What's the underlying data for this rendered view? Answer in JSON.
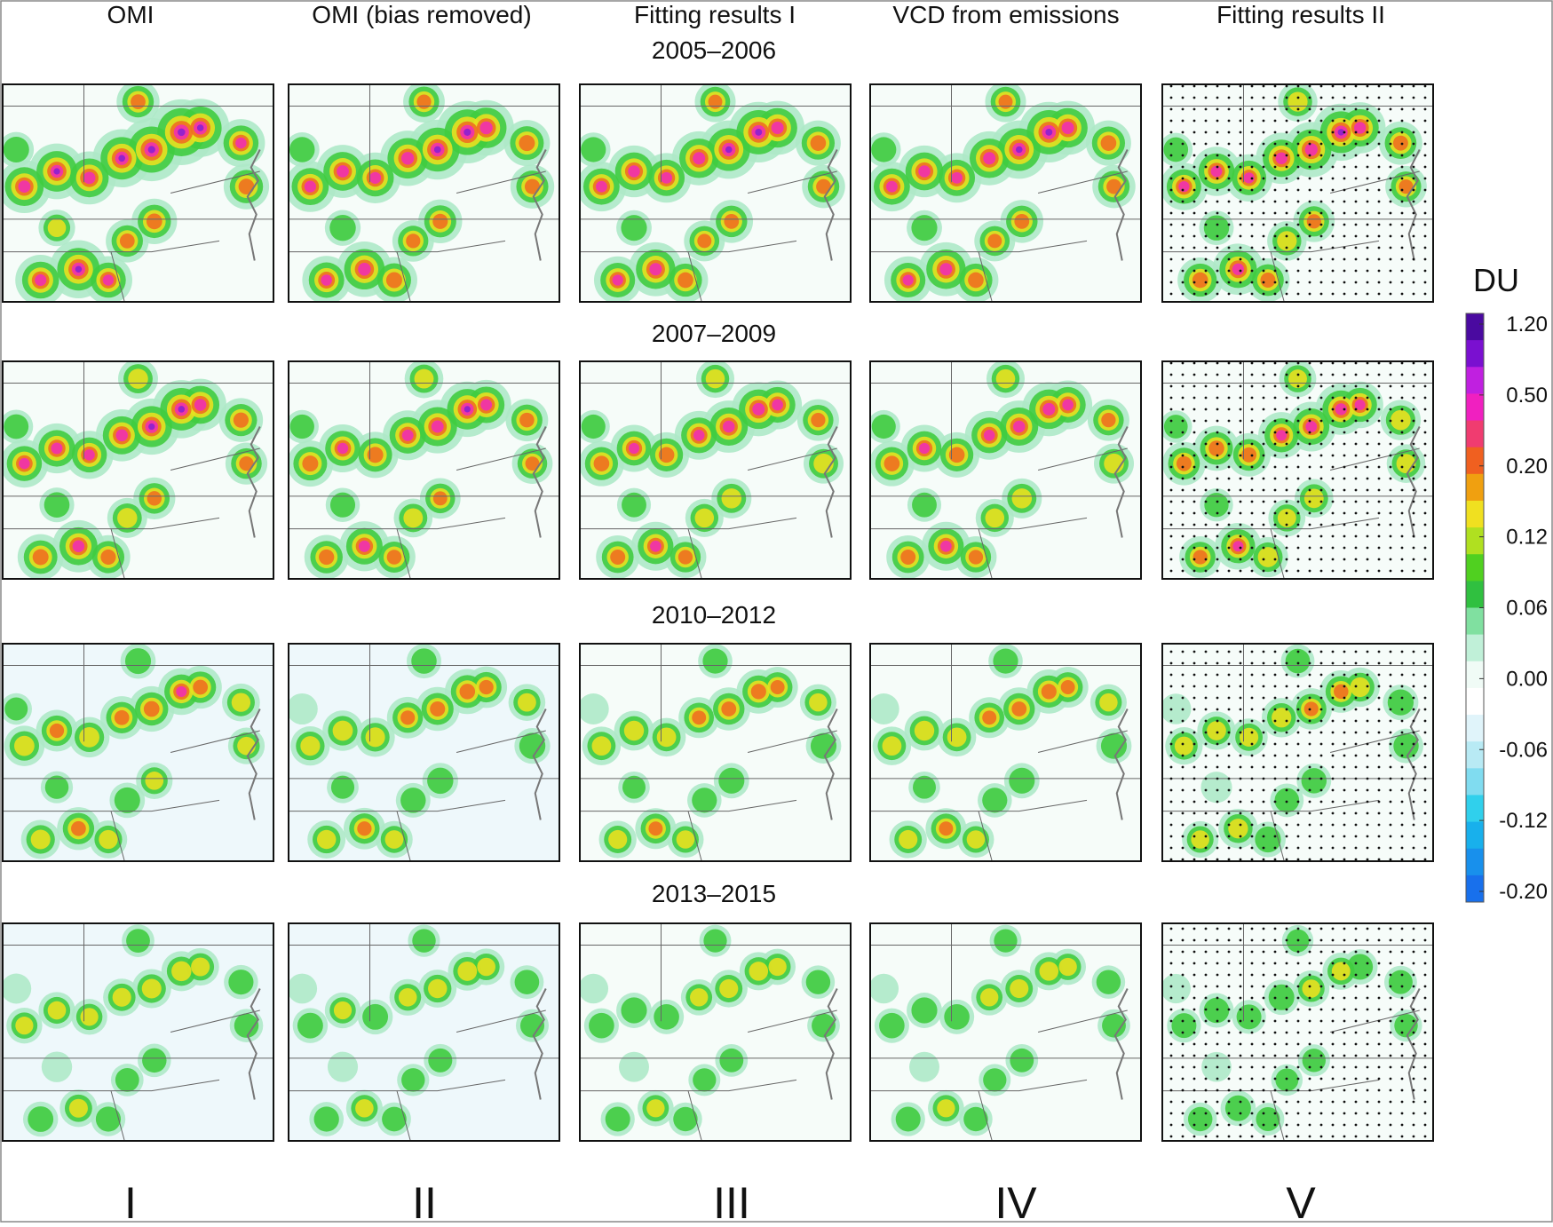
{
  "columns": [
    "OMI",
    "OMI (bias removed)",
    "Fitting results I",
    "VCD from emissions",
    "Fitting results II"
  ],
  "periods": [
    "2005–2006",
    "2007–2009",
    "2010–2012",
    "2013–2015"
  ],
  "column_numerals": [
    "I",
    "II",
    "III",
    "IV",
    "V"
  ],
  "colorbar": {
    "title": "DU",
    "ticks": [
      {
        "value": 1.2,
        "label": "1.20"
      },
      {
        "value": 0.5,
        "label": "0.50"
      },
      {
        "value": 0.2,
        "label": "0.20"
      },
      {
        "value": 0.12,
        "label": "0.12"
      },
      {
        "value": 0.06,
        "label": "0.06"
      },
      {
        "value": 0,
        "label": "0.00"
      },
      {
        "value": -0.06,
        "label": "-0.06"
      },
      {
        "value": -0.12,
        "label": "-0.12"
      },
      {
        "value": -0.2,
        "label": "-0.20"
      }
    ],
    "colors": [
      "#4a0aa0",
      "#7a10d0",
      "#c020e0",
      "#f020c0",
      "#f03c70",
      "#f06020",
      "#f0a010",
      "#f0e020",
      "#b0e020",
      "#50d020",
      "#30c040",
      "#80e0a0",
      "#c0f0d8",
      "#f0fbf6",
      "#ffffff",
      "#e0f4fa",
      "#b8eaf4",
      "#80dcf0",
      "#30d0ec",
      "#18b0ec",
      "#1890ec",
      "#1870ec"
    ]
  }
}
